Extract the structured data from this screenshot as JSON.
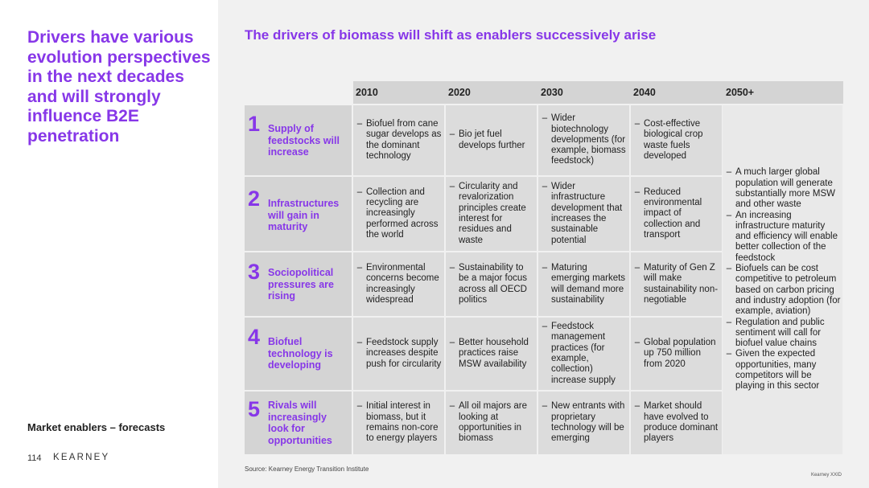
{
  "left": {
    "title": "Drivers have various evolution perspectives in the next decades and will strongly influence B2E penetration",
    "enablers_label": "Market enablers – forecasts",
    "page_number": "114",
    "brand": "KEARNEY"
  },
  "main": {
    "title": "The drivers of biomass will shift as enablers successively arise",
    "source": "Source: Kearney Energy Transition Institute",
    "copyright": "Kearney XXID"
  },
  "columns": [
    "2010",
    "2020",
    "2030",
    "2040",
    "2050+"
  ],
  "rows": [
    {
      "num": "1",
      "label": "Supply of feedstocks will increase",
      "cells": [
        "Biofuel from cane sugar develops as the dominant technology",
        "Bio jet fuel develops further",
        "Wider biotechnology developments (for example, biomass feedstock)",
        "Cost-effective biological crop waste fuels developed"
      ]
    },
    {
      "num": "2",
      "label": "Infrastructures will gain in maturity",
      "cells": [
        "Collection and recycling are increasingly performed across the world",
        "Circularity and revalorization principles create interest for residues and waste",
        "Wider infrastructure development that increases the sustainable potential",
        "Reduced environmental impact of collection and transport"
      ]
    },
    {
      "num": "3",
      "label": "Sociopolitical pressures are rising",
      "cells": [
        "Environmental concerns become increasingly widespread",
        "Sustainability to be a major focus across all OECD politics",
        "Maturing emerging markets will demand more sustainability",
        "Maturity of Gen Z will make sustainability non-negotiable"
      ]
    },
    {
      "num": "4",
      "label": "Biofuel technology is developing",
      "cells": [
        "Feedstock supply increases despite push for circularity",
        "Better household practices raise MSW availability",
        "Feedstock management practices (for example, collection) increase supply",
        "Global population up 750 million from 2020"
      ]
    },
    {
      "num": "5",
      "label": "Rivals will increasingly look for opportunities",
      "cells": [
        "Initial interest in biomass, but it remains non-core to energy players",
        "All oil majors are looking at opportunities in biomass",
        "New entrants with proprietary technology will be emerging",
        "Market should have evolved to produce dominant players"
      ]
    }
  ],
  "col_2050": [
    "A much larger global population will generate substantially more MSW and other waste",
    "An increasing infrastructure maturity and efficiency will enable better collection of the feedstock",
    "Biofuels can be cost competitive to petroleum based on carbon pricing and industry adoption (for example, aviation)",
    "Regulation and public sentiment will call for biofuel value chains",
    "Given the expected opportunities, many competitors will be playing in this sector"
  ],
  "colors": {
    "accent": "#8737e8",
    "header_bg": "#d4d4d4",
    "cell_bg": "#dcdcdc"
  }
}
